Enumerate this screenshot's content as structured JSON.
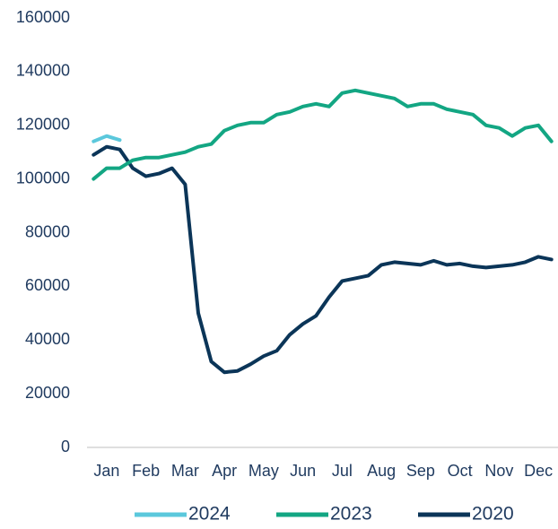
{
  "chart_data": {
    "type": "line",
    "categories": [
      null,
      "Jan",
      null,
      null,
      "Feb",
      null,
      null,
      "Mar",
      null,
      null,
      "Apr",
      null,
      null,
      "May",
      null,
      null,
      "Jun",
      null,
      null,
      "Jul",
      null,
      null,
      "Aug",
      null,
      null,
      "Sep",
      null,
      null,
      "Oct",
      null,
      null,
      "Nov",
      null,
      null,
      "Dec",
      null
    ],
    "series": [
      {
        "name": "2024",
        "color": "#5bc8dc",
        "values": [
          114000,
          116000,
          114500,
          null,
          null,
          null,
          null,
          null,
          null,
          null,
          null,
          null,
          null,
          null,
          null,
          null,
          null,
          null,
          null,
          null,
          null,
          null,
          null,
          null,
          null,
          null,
          null,
          null,
          null,
          null,
          null,
          null,
          null,
          null,
          null,
          null
        ]
      },
      {
        "name": "2023",
        "color": "#13a683",
        "values": [
          100000,
          104000,
          104000,
          107000,
          108000,
          108000,
          109000,
          110000,
          112000,
          113000,
          118000,
          120000,
          121000,
          121000,
          124000,
          125000,
          127000,
          128000,
          127000,
          132000,
          133000,
          132000,
          131000,
          130000,
          127000,
          128000,
          128000,
          126000,
          125000,
          124000,
          120000,
          119000,
          116000,
          119000,
          120000,
          114000
        ]
      },
      {
        "name": "2020",
        "color": "#0b3558",
        "values": [
          109000,
          112000,
          111000,
          104000,
          101000,
          102000,
          104000,
          98000,
          50000,
          32000,
          28000,
          28500,
          31000,
          34000,
          36000,
          42000,
          46000,
          49000,
          56000,
          62000,
          63000,
          64000,
          68000,
          69000,
          68500,
          68000,
          69500,
          68000,
          68500,
          67500,
          67000,
          67500,
          68000,
          69000,
          71000,
          70000
        ]
      }
    ],
    "ylim": [
      0,
      160000
    ],
    "yticks": [
      0,
      20000,
      40000,
      60000,
      80000,
      100000,
      120000,
      140000,
      160000
    ],
    "grid": false,
    "legend": "bottom"
  }
}
